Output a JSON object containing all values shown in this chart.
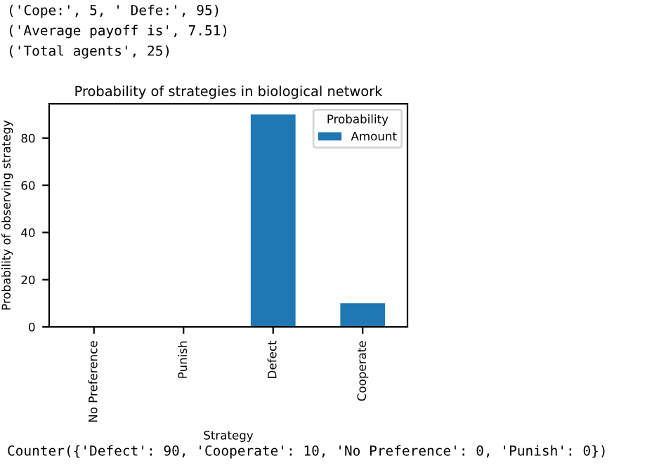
{
  "chart_data": {
    "type": "bar",
    "title": "Probability of strategies in biological network",
    "xlabel": "Strategy",
    "ylabel": "Probability of observing strategy",
    "categories": [
      "No Preference",
      "Punish",
      "Defect",
      "Cooperate"
    ],
    "series": [
      {
        "name": "Amount",
        "color": "#1f77b4",
        "values": [
          0,
          0,
          90,
          10
        ]
      }
    ],
    "legend_title": "Probability",
    "legend": "top right",
    "ylim": [
      0,
      94.5
    ],
    "yticks": [
      0,
      20,
      40,
      60,
      80
    ],
    "grid": false,
    "annotations": [
      "('Cope:', 5, ' Defe:', 95)",
      "('Average payoff is', 7.51)",
      "('Total agents', 25)",
      "Counter({'Defect': 90, 'Cooperate': 10, 'No Preference': 0, 'Punish': 0})"
    ]
  }
}
